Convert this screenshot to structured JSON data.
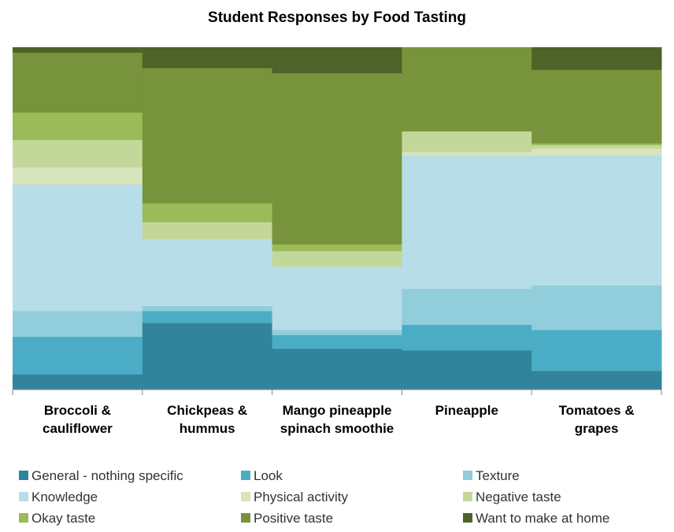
{
  "chart_data": {
    "type": "bar",
    "stacked": "100%",
    "title": "Student Responses by Food Tasting",
    "categories": [
      [
        "Broccoli &",
        "cauliflower"
      ],
      [
        "Chickpeas &",
        "hummus"
      ],
      [
        "Mango pineapple",
        "spinach smoothie"
      ],
      [
        "Pineapple"
      ],
      [
        "Tomatoes &",
        "grapes"
      ]
    ],
    "ylim": [
      0,
      100
    ],
    "grid": false,
    "legend": "bottom",
    "series": [
      {
        "name": "General - nothing specific",
        "color": "#31849b",
        "values": [
          4.5,
          19.5,
          12.0,
          11.5,
          5.5
        ]
      },
      {
        "name": "Look",
        "color": "#4bacc6",
        "values": [
          11.0,
          3.5,
          4.0,
          7.5,
          12.0
        ]
      },
      {
        "name": "Texture",
        "color": "#92cddc",
        "values": [
          7.5,
          1.5,
          1.5,
          10.5,
          13.0
        ]
      },
      {
        "name": "Knowledge",
        "color": "#b7dde8",
        "values": [
          37.0,
          19.5,
          18.5,
          39.0,
          38.0
        ]
      },
      {
        "name": "Physical activity",
        "color": "#d8e4bc",
        "values": [
          5.0,
          0.0,
          0.0,
          1.0,
          2.0
        ]
      },
      {
        "name": "Negative taste",
        "color": "#c4d79b",
        "values": [
          8.0,
          5.0,
          4.5,
          6.0,
          1.0
        ]
      },
      {
        "name": "Okay taste",
        "color": "#9bbb59",
        "values": [
          8.0,
          5.5,
          2.0,
          0.0,
          0.5
        ]
      },
      {
        "name": "Positive taste",
        "color": "#77933c",
        "values": [
          17.5,
          39.5,
          50.0,
          24.5,
          21.5
        ]
      },
      {
        "name": "Want to make at home",
        "color": "#4f6228",
        "values": [
          1.5,
          6.0,
          7.5,
          0.0,
          6.5
        ]
      }
    ]
  }
}
